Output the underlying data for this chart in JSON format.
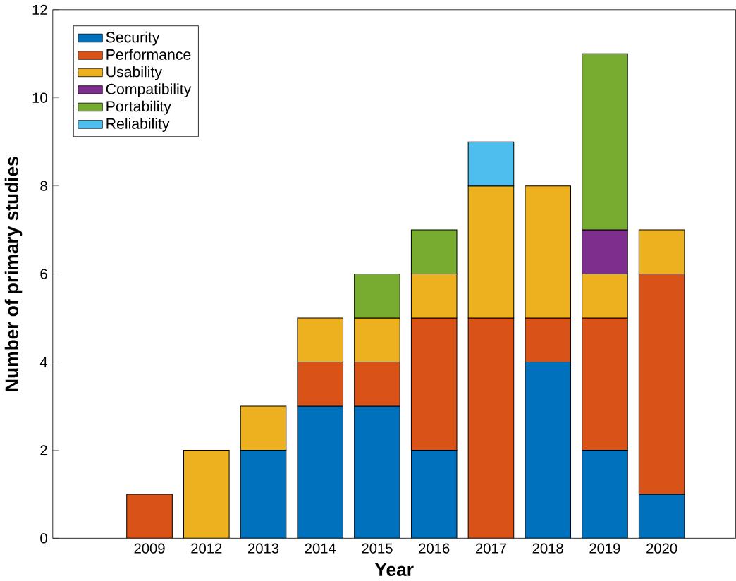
{
  "chart_data": {
    "type": "bar",
    "stacked": true,
    "xlabel": "Year",
    "ylabel": "Number of primary studies",
    "categories": [
      "2009",
      "2012",
      "2013",
      "2014",
      "2015",
      "2016",
      "2017",
      "2018",
      "2019",
      "2020"
    ],
    "series": [
      {
        "name": "Security",
        "color": "#0072bd",
        "values": [
          0,
          0,
          2,
          3,
          3,
          2,
          0,
          4,
          2,
          1
        ]
      },
      {
        "name": "Performance",
        "color": "#d95319",
        "values": [
          1,
          0,
          0,
          1,
          1,
          3,
          5,
          1,
          3,
          5
        ]
      },
      {
        "name": "Usability",
        "color": "#edb120",
        "values": [
          0,
          2,
          1,
          1,
          1,
          1,
          3,
          3,
          1,
          1
        ]
      },
      {
        "name": "Compatibility",
        "color": "#7e2f8e",
        "values": [
          0,
          0,
          0,
          0,
          0,
          0,
          0,
          0,
          1,
          0
        ]
      },
      {
        "name": "Portability",
        "color": "#77ac30",
        "values": [
          0,
          0,
          0,
          0,
          1,
          1,
          0,
          0,
          4,
          0
        ]
      },
      {
        "name": "Reliability",
        "color": "#4dbeee",
        "values": [
          0,
          0,
          0,
          0,
          0,
          0,
          1,
          0,
          0,
          0
        ]
      }
    ],
    "ylim": [
      0,
      12
    ],
    "yticks": [
      0,
      2,
      4,
      6,
      8,
      10,
      12
    ],
    "grid": false,
    "legend": "top left"
  }
}
